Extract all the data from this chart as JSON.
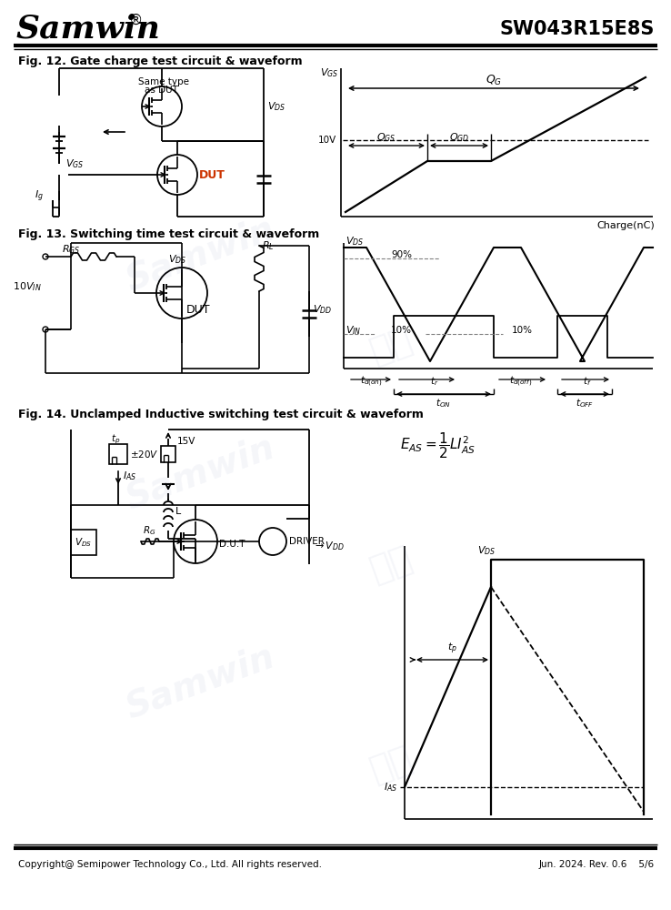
{
  "title_company": "Samwin",
  "title_part": "SW043R15E8S",
  "footer_left": "Copyright@ Semipower Technology Co., Ltd. All rights reserved.",
  "footer_right": "Jun. 2024. Rev. 0.6    5/6",
  "fig12_title": "Fig. 12. Gate charge test circuit & waveform",
  "fig13_title": "Fig. 13. Switching time test circuit & waveform",
  "fig14_title": "Fig. 14. Unclamped Inductive switching test circuit & waveform",
  "bg_color": "#ffffff",
  "line_color": "#000000"
}
